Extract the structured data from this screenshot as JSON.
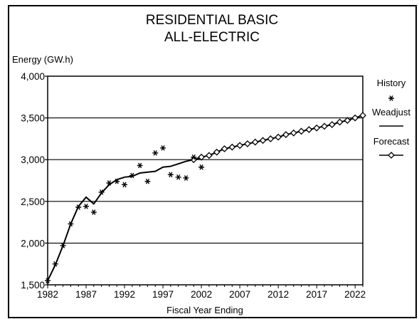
{
  "chart_data": {
    "type": "line",
    "title_lines": [
      "RESIDENTIAL BASIC",
      "ALL-ELECTRIC"
    ],
    "ylabel": "Energy (GW.h)",
    "xlabel": "Fiscal Year Ending",
    "ylim": [
      1500,
      4000
    ],
    "xlim": [
      1982,
      2023
    ],
    "y_ticks": [
      1500,
      2000,
      2500,
      3000,
      3500,
      4000
    ],
    "y_tick_labels": [
      "1,500",
      "2,000",
      "2,500",
      "3,000",
      "3,500",
      "4,000"
    ],
    "x_ticks": [
      1982,
      1987,
      1992,
      1997,
      2002,
      2007,
      2012,
      2017,
      2022
    ],
    "x_tick_labels": [
      "1982",
      "1987",
      "1992",
      "1997",
      "2002",
      "2007",
      "2012",
      "2017",
      "2022"
    ],
    "grid": "horizontal",
    "legend_position": "right",
    "series": [
      {
        "name": "History",
        "marker": "asterisk",
        "x": [
          1982,
          1983,
          1984,
          1985,
          1986,
          1987,
          1988,
          1989,
          1990,
          1991,
          1992,
          1993,
          1994,
          1995,
          1996,
          1997,
          1998,
          1999,
          2000,
          2001,
          2002
        ],
        "y": [
          1550,
          1750,
          1970,
          2230,
          2430,
          2440,
          2370,
          2610,
          2720,
          2740,
          2700,
          2810,
          2930,
          2740,
          3080,
          3140,
          2820,
          2790,
          2780,
          3030,
          2910
        ]
      },
      {
        "name": "Weadjust",
        "marker": "line",
        "x": [
          1982,
          1983,
          1984,
          1985,
          1986,
          1987,
          1988,
          1989,
          1990,
          1991,
          1992,
          1993,
          1994,
          1995,
          1996,
          1997,
          1998,
          1999,
          2000,
          2001,
          2002
        ],
        "y": [
          1550,
          1740,
          1970,
          2230,
          2440,
          2550,
          2470,
          2600,
          2700,
          2760,
          2790,
          2800,
          2840,
          2850,
          2860,
          2910,
          2920,
          2950,
          2980,
          3000,
          3020
        ]
      },
      {
        "name": "Forecast",
        "marker": "diamond-line",
        "x": [
          2001,
          2002,
          2003,
          2004,
          2005,
          2006,
          2007,
          2008,
          2009,
          2010,
          2011,
          2012,
          2013,
          2014,
          2015,
          2016,
          2017,
          2018,
          2019,
          2020,
          2021,
          2022,
          2023
        ],
        "y": [
          3000,
          3030,
          3050,
          3090,
          3130,
          3150,
          3170,
          3190,
          3210,
          3230,
          3250,
          3270,
          3300,
          3320,
          3340,
          3360,
          3380,
          3400,
          3420,
          3450,
          3470,
          3500,
          3530
        ]
      }
    ]
  }
}
